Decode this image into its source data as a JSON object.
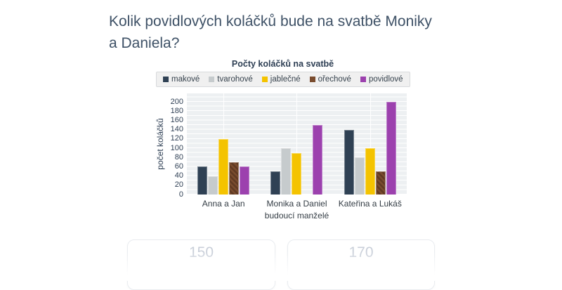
{
  "page": {
    "question_lines": [
      "Kolik povidlových koláčků bude na svatbě Moniky",
      "a Daniela?"
    ],
    "answers": [
      {
        "label": "150"
      },
      {
        "label": "170"
      }
    ]
  },
  "chart_data": {
    "type": "bar",
    "title": "Počty koláčků na svatbě",
    "categories": [
      "Anna a Jan",
      "Monika a Daniel",
      "Kateřina a Lukáš"
    ],
    "series": [
      {
        "name": "makové",
        "color": "#2f4154",
        "values": [
          60,
          50,
          140
        ]
      },
      {
        "name": "tvarohové",
        "color": "#c6cbcd",
        "values": [
          40,
          100,
          80
        ]
      },
      {
        "name": "jablečné",
        "color": "#f4c300",
        "values": [
          120,
          90,
          100
        ]
      },
      {
        "name": "ořechové",
        "color": "#7a4c2e",
        "color2": "#5f3a23",
        "hatch": true,
        "values": [
          70,
          0,
          50
        ]
      },
      {
        "name": "povidlové",
        "color": "#9c41ae",
        "values": [
          60,
          150,
          200
        ]
      }
    ],
    "xlabel": "budoucí manželé",
    "ylabel": "počet koláčků",
    "ylim": [
      0,
      200
    ],
    "ytick_step": 20,
    "grid": true,
    "legend_position": "top",
    "plot_background": "#edf0f2",
    "text_color": "#2e3f54"
  }
}
